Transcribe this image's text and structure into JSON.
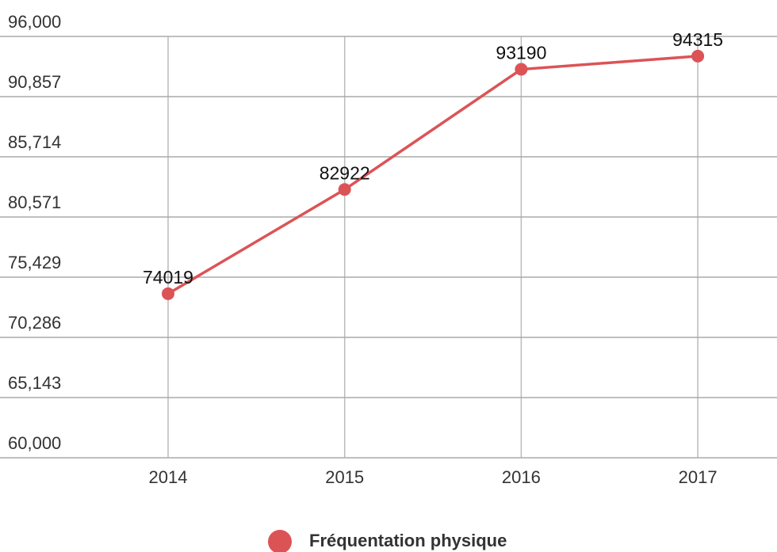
{
  "chart_data": {
    "type": "line",
    "categories": [
      "2014",
      "2015",
      "2016",
      "2017"
    ],
    "series": [
      {
        "name": "Fréquentation physique",
        "color": "#dc5356",
        "values": [
          74019,
          82922,
          93190,
          94315
        ]
      }
    ],
    "ylim": [
      60000,
      96000
    ],
    "yticks": [
      {
        "value": 60000,
        "label": "60,000"
      },
      {
        "value": 65143,
        "label": "65,143"
      },
      {
        "value": 70286,
        "label": "70,286"
      },
      {
        "value": 75429,
        "label": "75,429"
      },
      {
        "value": 80571,
        "label": "80,571"
      },
      {
        "value": 85714,
        "label": "85,714"
      },
      {
        "value": 90857,
        "label": "90,857"
      },
      {
        "value": 96000,
        "label": "96,000"
      }
    ],
    "grid": true,
    "legend": "bottom"
  }
}
